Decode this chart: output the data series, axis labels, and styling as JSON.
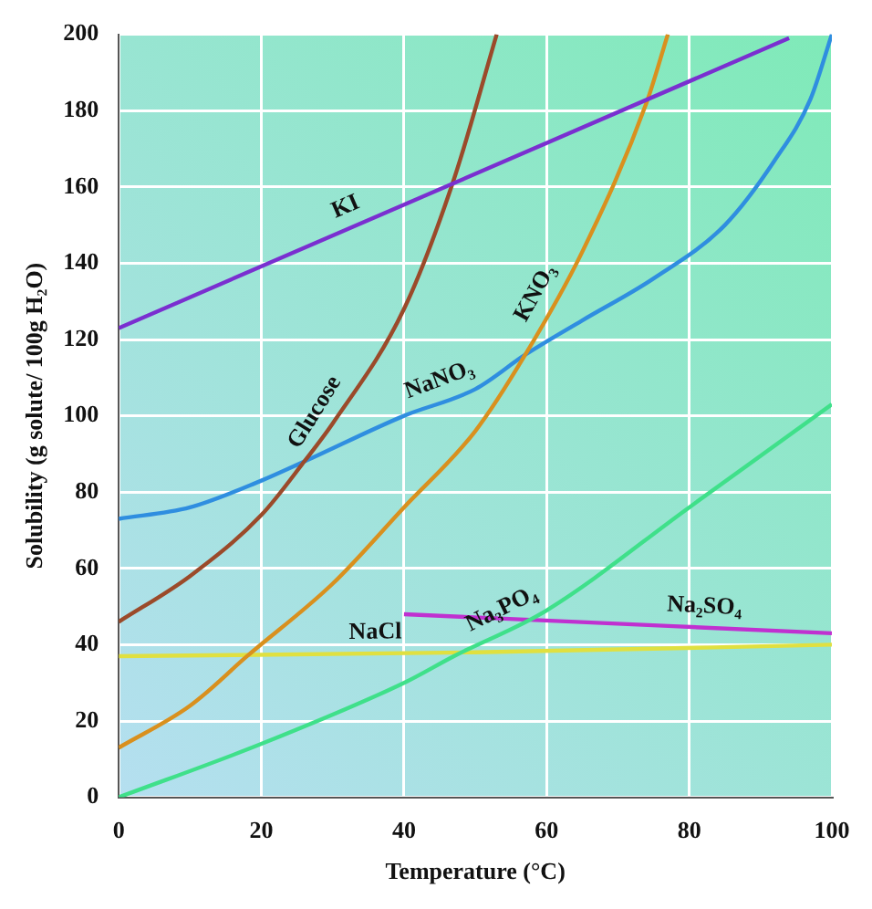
{
  "chart_data": {
    "type": "line",
    "xlabel": "Temperature (°C)",
    "ylabel": "Solubility (g solute/ 100g H₂O)",
    "xlim": [
      0,
      100
    ],
    "xticks": [
      0,
      20,
      40,
      60,
      80,
      100
    ],
    "ylim": [
      0,
      200
    ],
    "yticks": [
      0,
      20,
      40,
      60,
      80,
      100,
      120,
      140,
      160,
      180,
      200
    ],
    "grid": true,
    "legend": false,
    "series": [
      {
        "name": "KI",
        "color": "#7a2fd0",
        "x": [
          0,
          94
        ],
        "values": [
          123,
          199
        ]
      },
      {
        "name": "Glucose",
        "color": "#9b4a2a",
        "x": [
          0,
          10,
          20,
          26,
          30,
          40,
          47,
          53
        ],
        "values": [
          46,
          58,
          74,
          88,
          98,
          128,
          162,
          200
        ]
      },
      {
        "name": "KNO₃",
        "color": "#d9901e",
        "x": [
          0,
          10,
          18,
          30,
          40,
          50,
          57,
          65,
          74,
          77
        ],
        "values": [
          13,
          24,
          37,
          56,
          76,
          96,
          116,
          143,
          182,
          200
        ]
      },
      {
        "name": "NaNO₃",
        "color": "#2f8ee0",
        "x": [
          0,
          10,
          20,
          26,
          40,
          50,
          57,
          65,
          75,
          85,
          92,
          97,
          100
        ],
        "values": [
          73,
          76,
          83,
          88,
          100,
          107,
          116,
          125,
          136,
          150,
          167,
          183,
          200
        ]
      },
      {
        "name": "Na₃PO₄",
        "color": "#3fe08a",
        "x": [
          0,
          20,
          40,
          47,
          60,
          80,
          100
        ],
        "values": [
          0,
          14,
          30,
          37,
          49,
          76,
          103
        ]
      },
      {
        "name": "NaCl",
        "color": "#e0e040",
        "x": [
          0,
          50,
          100
        ],
        "values": [
          37,
          38,
          40
        ]
      },
      {
        "name": "Na₂SO₄",
        "color": "#c030d0",
        "x": [
          40,
          100
        ],
        "values": [
          48,
          43
        ]
      }
    ]
  }
}
